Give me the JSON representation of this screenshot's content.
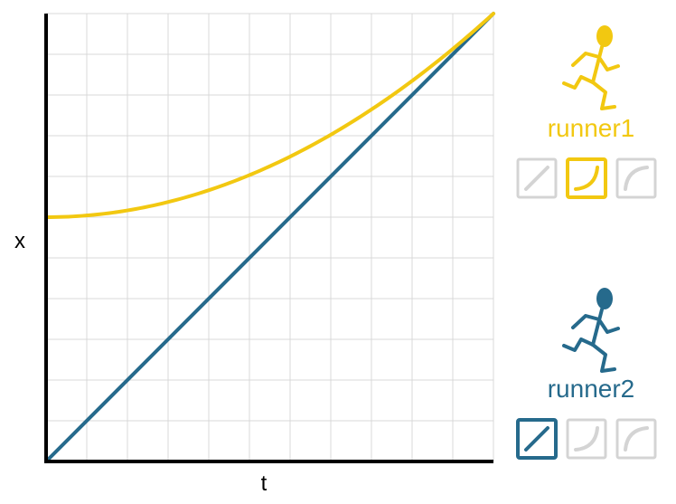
{
  "axes": {
    "x_label": "t",
    "y_label": "x"
  },
  "chart_data": {
    "type": "line",
    "xlabel": "t",
    "ylabel": "x",
    "grid": true,
    "xlim": [
      0,
      11
    ],
    "ylim": [
      0,
      11
    ],
    "series": [
      {
        "name": "runner1",
        "color": "#f2c811",
        "shape": "accelerating",
        "x": [
          0,
          1,
          2,
          3,
          4,
          5,
          6,
          7,
          8,
          9,
          10,
          11
        ],
        "y": [
          6.0,
          6.04,
          6.17,
          6.37,
          6.66,
          7.03,
          7.49,
          8.02,
          8.64,
          9.35,
          10.13,
          11.0
        ]
      },
      {
        "name": "runner2",
        "color": "#266a8c",
        "shape": "constant",
        "x": [
          0,
          11
        ],
        "y": [
          0,
          11
        ]
      }
    ]
  },
  "runners": [
    {
      "name": "runner1",
      "color": "#f2c811",
      "icon": "running-person-icon",
      "options": [
        {
          "id": "linear",
          "icon": "straight-line-icon",
          "selected": false
        },
        {
          "id": "accelerating",
          "icon": "concave-up-curve-icon",
          "selected": true
        },
        {
          "id": "decelerating",
          "icon": "concave-down-curve-icon",
          "selected": false
        }
      ]
    },
    {
      "name": "runner2",
      "color": "#266a8c",
      "icon": "running-person-icon",
      "options": [
        {
          "id": "linear",
          "icon": "straight-line-icon",
          "selected": true
        },
        {
          "id": "accelerating",
          "icon": "concave-up-curve-icon",
          "selected": false
        },
        {
          "id": "decelerating",
          "icon": "concave-down-curve-icon",
          "selected": false
        }
      ]
    }
  ],
  "colors": {
    "grid": "#d9d9d9",
    "axis": "#000000",
    "inactive": "#d4d4d4"
  }
}
